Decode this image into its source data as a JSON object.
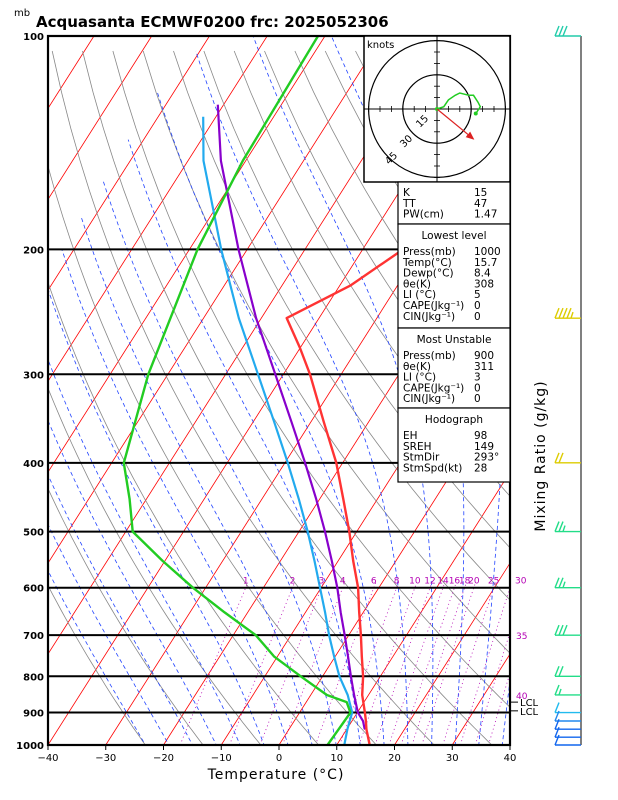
{
  "title": "Acquasanta ECMWF0200 frc: 2025052306",
  "units_mb": "mb",
  "xlabel": "Temperature (°C)",
  "mixing_ratio_label": "Mixing Ratio (g/kg)",
  "colors": {
    "temperature": "#ff3333",
    "dewpoint": "#22cc22",
    "parcel": "#8800cc",
    "wetbulb": "#22aaee",
    "isotherm": "#ff0000",
    "dry_adiabat": "#888888",
    "moist_adiabat": "#2244ff",
    "mixing_ratio": "#b400b4",
    "hodograph": "#22cc22",
    "storm_motion": "#dd2222"
  },
  "chart_data": {
    "type": "line",
    "title": "Acquasanta ECMWF0200 frc: 2025052306",
    "xlabel": "Temperature (°C)",
    "ylabel": "mb",
    "xlim": [
      -40,
      40
    ],
    "ylim": [
      1000,
      100
    ],
    "y_scale": "log",
    "x_ticks": [
      -40,
      -30,
      -20,
      -10,
      0,
      10,
      20,
      30,
      40
    ],
    "y_ticks": [
      100,
      200,
      300,
      400,
      500,
      600,
      700,
      800,
      900,
      1000
    ],
    "grid": true,
    "series": [
      {
        "key": "temperature",
        "points": [
          [
            1000,
            15.7
          ],
          [
            950,
            13.4
          ],
          [
            925,
            12.4
          ],
          [
            900,
            11.3
          ],
          [
            850,
            8.9
          ],
          [
            800,
            7.0
          ],
          [
            750,
            4.6
          ],
          [
            700,
            2.1
          ],
          [
            650,
            -0.7
          ],
          [
            600,
            -3.6
          ],
          [
            550,
            -7.4
          ],
          [
            500,
            -11.3
          ],
          [
            450,
            -15.9
          ],
          [
            400,
            -21.1
          ],
          [
            350,
            -27.8
          ],
          [
            300,
            -35.4
          ],
          [
            275,
            -40.1
          ],
          [
            250,
            -45.6
          ],
          [
            225,
            -38.2
          ],
          [
            200,
            -33.0
          ],
          [
            175,
            -27.8
          ],
          [
            150,
            -21.8
          ],
          [
            125,
            -15.0
          ],
          [
            100,
            -6.2
          ]
        ]
      },
      {
        "key": "dewpoint",
        "points": [
          [
            1000,
            8.4
          ],
          [
            950,
            8.6
          ],
          [
            925,
            8.7
          ],
          [
            900,
            8.8
          ],
          [
            870,
            7.0
          ],
          [
            850,
            2.8
          ],
          [
            800,
            -3.8
          ],
          [
            750,
            -10.6
          ],
          [
            700,
            -16.1
          ],
          [
            650,
            -24.0
          ],
          [
            600,
            -32.2
          ],
          [
            550,
            -40.4
          ],
          [
            500,
            -48.8
          ],
          [
            450,
            -52.9
          ],
          [
            400,
            -57.9
          ],
          [
            300,
            -63.4
          ],
          [
            200,
            -68.6
          ],
          [
            150,
            -70.5
          ],
          [
            100,
            -71.2
          ]
        ]
      },
      {
        "key": "parcel",
        "points": [
          [
            950,
            13.1
          ],
          [
            925,
            11.9
          ],
          [
            900,
            10.1
          ],
          [
            850,
            7.5
          ],
          [
            800,
            4.9
          ],
          [
            750,
            2.2
          ],
          [
            700,
            -0.7
          ],
          [
            650,
            -3.9
          ],
          [
            600,
            -7.2
          ],
          [
            550,
            -11.1
          ],
          [
            500,
            -15.5
          ],
          [
            450,
            -20.6
          ],
          [
            400,
            -26.5
          ],
          [
            350,
            -33.4
          ],
          [
            300,
            -41.4
          ],
          [
            250,
            -50.9
          ],
          [
            200,
            -61.5
          ],
          [
            150,
            -74.3
          ],
          [
            125,
            -81.0
          ]
        ]
      },
      {
        "key": "wetbulb",
        "points": [
          [
            1000,
            11.3
          ],
          [
            950,
            10.1
          ],
          [
            925,
            9.6
          ],
          [
            900,
            9.1
          ],
          [
            850,
            6.4
          ],
          [
            800,
            2.9
          ],
          [
            750,
            -0.2
          ],
          [
            700,
            -3.4
          ],
          [
            650,
            -6.6
          ],
          [
            600,
            -10.2
          ],
          [
            550,
            -14.1
          ],
          [
            500,
            -18.5
          ],
          [
            450,
            -23.6
          ],
          [
            400,
            -29.5
          ],
          [
            350,
            -36.4
          ],
          [
            300,
            -44.4
          ],
          [
            250,
            -53.9
          ],
          [
            200,
            -64.5
          ],
          [
            150,
            -77.3
          ],
          [
            130,
            -82.2
          ]
        ]
      }
    ],
    "mixing_ratio_lines": [
      1,
      2,
      3,
      4,
      6,
      8,
      10,
      12,
      14,
      16,
      18,
      20,
      25,
      30,
      35,
      40
    ],
    "mixing_ratio_labels": [
      "1",
      "2",
      "3",
      "4",
      "6",
      "8",
      "10",
      "12",
      "14",
      "16",
      "18",
      "20",
      "25",
      "30",
      "35",
      "40"
    ],
    "level_labels": [
      {
        "text": "LCL",
        "pressure": 870
      },
      {
        "text": "LCL",
        "pressure": 895
      }
    ],
    "wind_barbs": [
      {
        "pressure": 100,
        "speed_kt": 30,
        "color": "#22ccaa"
      },
      {
        "pressure": 250,
        "speed_kt": 45,
        "color": "#ddcc00"
      },
      {
        "pressure": 400,
        "speed_kt": 20,
        "color": "#ddcc00"
      },
      {
        "pressure": 500,
        "speed_kt": 25,
        "color": "#22dd88"
      },
      {
        "pressure": 600,
        "speed_kt": 25,
        "color": "#22dd88"
      },
      {
        "pressure": 700,
        "speed_kt": 30,
        "color": "#22dd88"
      },
      {
        "pressure": 800,
        "speed_kt": 20,
        "color": "#22dd88"
      },
      {
        "pressure": 850,
        "speed_kt": 15,
        "color": "#22dd88"
      },
      {
        "pressure": 900,
        "speed_kt": 10,
        "color": "#22bbee"
      },
      {
        "pressure": 925,
        "speed_kt": 10,
        "color": "#2288ee"
      },
      {
        "pressure": 950,
        "speed_kt": 10,
        "color": "#1166ee"
      },
      {
        "pressure": 975,
        "speed_kt": 10,
        "color": "#1166ee"
      },
      {
        "pressure": 1000,
        "speed_kt": 10,
        "color": "#1166ee"
      }
    ],
    "hodograph": {
      "label": "knots",
      "ring_labels": [
        "15",
        "30",
        "45"
      ],
      "points": [
        [
          0,
          0
        ],
        [
          3,
          1
        ],
        [
          5,
          4
        ],
        [
          8,
          6
        ],
        [
          10,
          7
        ],
        [
          14,
          6
        ],
        [
          16,
          6
        ],
        [
          18,
          3
        ],
        [
          19,
          1
        ],
        [
          17,
          -2
        ]
      ],
      "storm_dir_deg": 293,
      "storm_speed_kt": 28
    }
  },
  "indices": {
    "rows": [
      {
        "label": "K",
        "value": "15"
      },
      {
        "label": "TT",
        "value": "47"
      },
      {
        "label": "PW(cm)",
        "value": "1.47"
      }
    ]
  },
  "lowest_level": {
    "header": "Lowest level",
    "rows": [
      {
        "label": "Press(mb)",
        "value": "1000"
      },
      {
        "label": "Temp(°C)",
        "value": "15.7"
      },
      {
        "label": "Dewp(°C)",
        "value": "8.4"
      },
      {
        "label": "θe(K)",
        "value": "308"
      },
      {
        "label": "LI (°C)",
        "value": "5"
      },
      {
        "label": "CAPE(Jkg⁻¹)",
        "value": "0"
      },
      {
        "label": "CIN(Jkg⁻¹)",
        "value": "0"
      }
    ]
  },
  "most_unstable": {
    "header": "Most Unstable",
    "rows": [
      {
        "label": "Press(mb)",
        "value": "900"
      },
      {
        "label": "θe(K)",
        "value": "311"
      },
      {
        "label": "LI (°C)",
        "value": "3"
      },
      {
        "label": "CAPE(Jkg⁻¹)",
        "value": "0"
      },
      {
        "label": "CIN(Jkg⁻¹)",
        "value": "0"
      }
    ]
  },
  "hodograph_panel": {
    "header": "Hodograph",
    "rows": [
      {
        "label": "EH",
        "value": "98"
      },
      {
        "label": "SREH",
        "value": "149"
      },
      {
        "label": "StmDir",
        "value": "293°"
      },
      {
        "label": "StmSpd(kt)",
        "value": "28"
      }
    ]
  }
}
